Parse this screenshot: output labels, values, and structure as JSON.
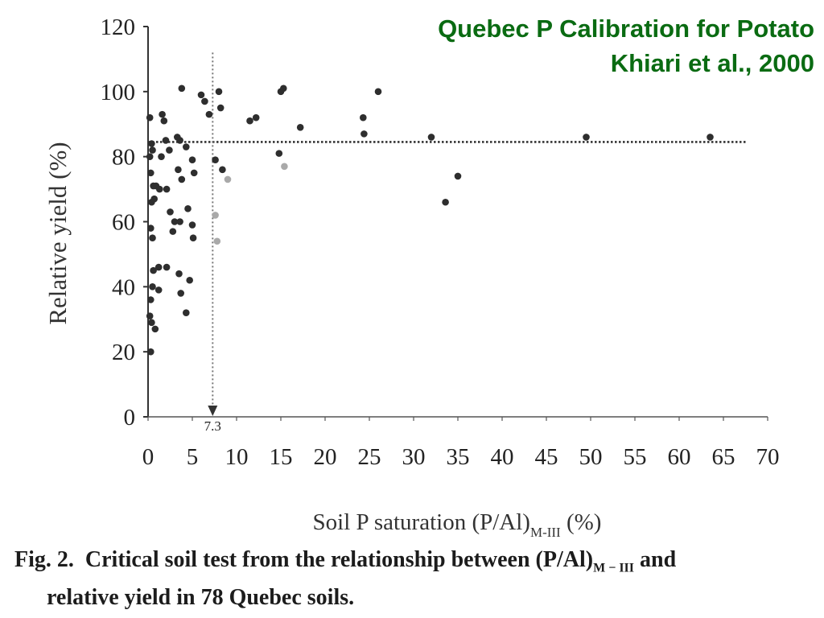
{
  "header": {
    "title_line1": "Quebec P Calibration for Potato",
    "title_line2": "Khiari et al., 2000",
    "title_color": "#0a6b12"
  },
  "caption": {
    "prefix": "Fig. 2.",
    "text_a": "Critical soil test from the relationship between (P/Al)",
    "subscript": "M − III",
    "text_b": " and",
    "line2": "relative yield in 78 Quebec soils."
  },
  "chart_data": {
    "type": "scatter",
    "xlabel_main": "Soil P saturation (P/Al)",
    "xlabel_sub": "M-III",
    "xlabel_unit": " (%)",
    "ylabel": "Relative yield (%)",
    "xlim": [
      0,
      70
    ],
    "ylim": [
      0,
      120
    ],
    "xticks": [
      "0",
      "5",
      "10",
      "15",
      "20",
      "25",
      "30",
      "35",
      "40",
      "45",
      "50",
      "55",
      "60",
      "65",
      "70"
    ],
    "yticks": [
      "0",
      "20",
      "40",
      "60",
      "80",
      "100",
      "120"
    ],
    "critical_x_label": "7.3",
    "critical_x": 7.3,
    "critical_y": 84.5,
    "grid": false,
    "point_colors": {
      "main": "#2e2e2e",
      "faded": "#a9a9a9"
    },
    "series": [
      {
        "points": [
          [
            0.2,
            92
          ],
          [
            0.4,
            84
          ],
          [
            0.2,
            80
          ],
          [
            0.5,
            82
          ],
          [
            0.3,
            75
          ],
          [
            0.6,
            71
          ],
          [
            0.9,
            71
          ],
          [
            0.7,
            67
          ],
          [
            0.4,
            66
          ],
          [
            0.3,
            58
          ],
          [
            0.5,
            55
          ],
          [
            0.6,
            45
          ],
          [
            0.5,
            40
          ],
          [
            0.3,
            36
          ],
          [
            0.2,
            31
          ],
          [
            0.4,
            29
          ],
          [
            0.8,
            27
          ],
          [
            0.3,
            20
          ],
          [
            1.2,
            39
          ],
          [
            1.2,
            46
          ],
          [
            1.3,
            70
          ],
          [
            1.6,
            93
          ],
          [
            1.8,
            91
          ],
          [
            1.5,
            80
          ],
          [
            2.0,
            85
          ],
          [
            2.1,
            70
          ],
          [
            2.4,
            82
          ],
          [
            2.5,
            63
          ],
          [
            2.8,
            57
          ],
          [
            3.0,
            60
          ],
          [
            3.6,
            60
          ],
          [
            3.4,
            76
          ],
          [
            3.8,
            73
          ],
          [
            3.6,
            85
          ],
          [
            3.3,
            86
          ],
          [
            3.8,
            101
          ],
          [
            4.3,
            83
          ],
          [
            4.5,
            64
          ],
          [
            5.0,
            59
          ],
          [
            5.1,
            55
          ],
          [
            5.2,
            75
          ],
          [
            5.0,
            79
          ],
          [
            2.1,
            46
          ],
          [
            3.5,
            44
          ],
          [
            4.7,
            42
          ],
          [
            3.7,
            38
          ],
          [
            4.3,
            32
          ],
          [
            6.0,
            99
          ],
          [
            6.4,
            97
          ],
          [
            6.9,
            93
          ],
          [
            7.6,
            79
          ],
          [
            8.0,
            100
          ],
          [
            8.2,
            95
          ],
          [
            8.4,
            76
          ],
          [
            11.5,
            91
          ],
          [
            12.2,
            92
          ],
          [
            14.8,
            81
          ],
          [
            15.0,
            100
          ],
          [
            15.3,
            101
          ],
          [
            17.2,
            89
          ],
          [
            24.3,
            92
          ],
          [
            24.4,
            87
          ],
          [
            26.0,
            100
          ],
          [
            32.0,
            86
          ],
          [
            33.6,
            66
          ],
          [
            35.0,
            74
          ],
          [
            49.5,
            86
          ],
          [
            63.5,
            86
          ]
        ]
      },
      {
        "faded": true,
        "points": [
          [
            7.6,
            62
          ],
          [
            7.8,
            54
          ],
          [
            9.0,
            73
          ],
          [
            15.4,
            77
          ]
        ]
      }
    ]
  }
}
